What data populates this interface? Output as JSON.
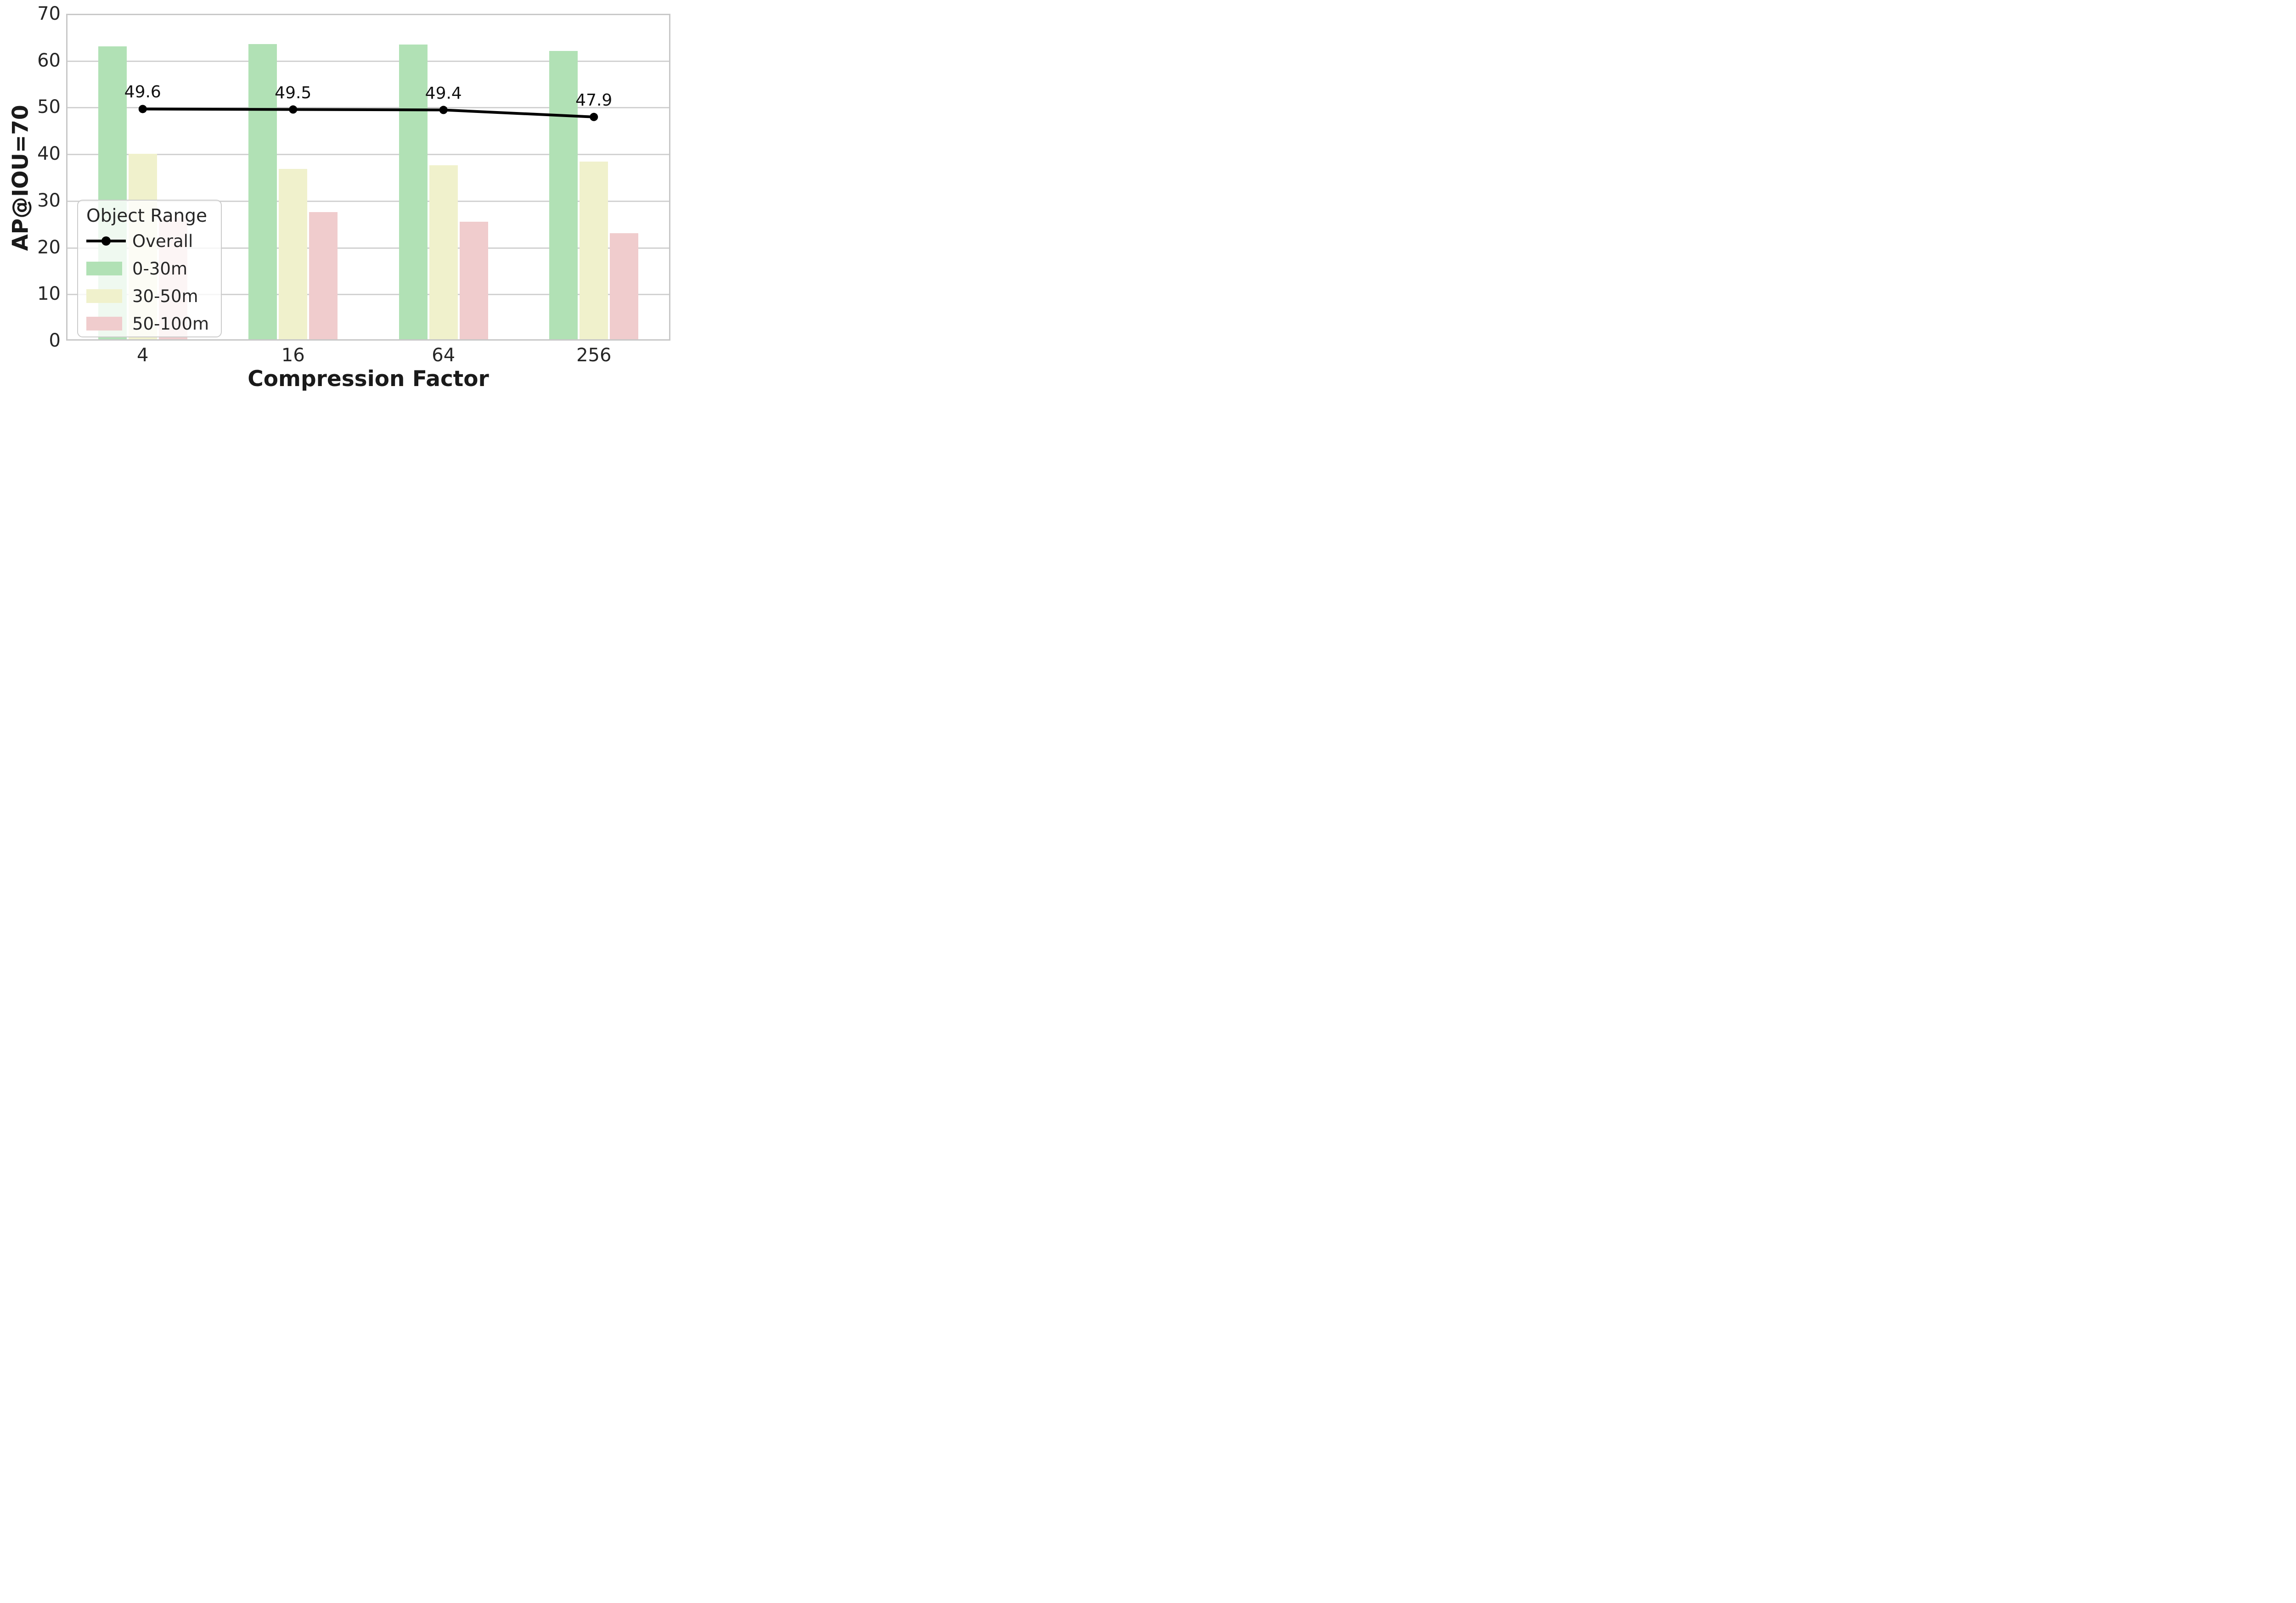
{
  "chart_data": {
    "type": "bar",
    "overlay": "line",
    "categories": [
      "4",
      "16",
      "64",
      "256"
    ],
    "series": [
      {
        "name": "0-30m",
        "type": "bar",
        "color": "#b1e1b5",
        "values": [
          63.0,
          63.5,
          63.4,
          62.0
        ]
      },
      {
        "name": "30-50m",
        "type": "bar",
        "color": "#f0f1cc",
        "values": [
          40.0,
          36.8,
          37.6,
          38.3
        ]
      },
      {
        "name": "50-100m",
        "type": "bar",
        "color": "#f0cccd",
        "values": [
          26.3,
          27.5,
          25.5,
          23.0
        ]
      },
      {
        "name": "Overall",
        "type": "line",
        "color": "#000000",
        "values": [
          49.6,
          49.5,
          49.4,
          47.9
        ],
        "point_labels": [
          "49.6",
          "49.5",
          "49.4",
          "47.9"
        ]
      }
    ],
    "title": "",
    "xlabel": "Compression Factor",
    "ylabel": "AP@IOU=70",
    "ylim": [
      0,
      70
    ],
    "yticks": [
      0,
      10,
      20,
      30,
      40,
      50,
      60,
      70
    ],
    "grid": true,
    "legend_title": "Object Range",
    "legend_position": "lower left",
    "colors": {
      "gridline": "#d2d2d2",
      "spine": "#c8c8c8",
      "text": "#262626",
      "annotation": "#111111"
    }
  }
}
